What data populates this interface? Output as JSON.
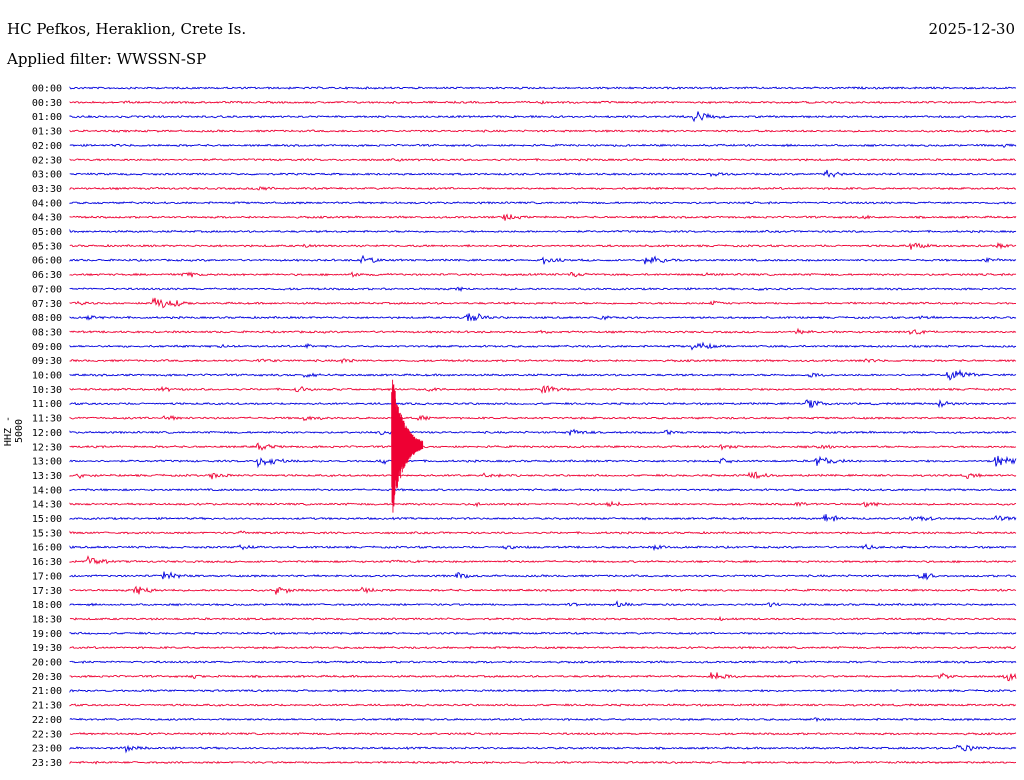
{
  "header": {
    "station": "HC Pefkos, Heraklion, Crete Is.",
    "date": "2025-12-30",
    "filter": "Applied filter: WWSSN-SP",
    "channel_label": "HHZ - 5000"
  },
  "colors": {
    "blue": "#0000dd",
    "red": "#ee0033"
  },
  "chart_data": {
    "type": "helicorder",
    "ylabel": "HHZ - 5000",
    "traces": [
      {
        "time": "00:00",
        "color": "blue",
        "events": []
      },
      {
        "time": "00:30",
        "color": "red",
        "events": [
          [
            0.06,
            0.25
          ],
          [
            0.5,
            0.25
          ],
          [
            0.98,
            0.2
          ]
        ]
      },
      {
        "time": "01:00",
        "color": "blue",
        "events": [
          [
            0.49,
            0.2
          ],
          [
            0.66,
            0.9
          ]
        ]
      },
      {
        "time": "01:30",
        "color": "red",
        "events": []
      },
      {
        "time": "02:00",
        "color": "blue",
        "events": [
          [
            0.05,
            0.25
          ],
          [
            0.99,
            0.35
          ]
        ]
      },
      {
        "time": "02:30",
        "color": "red",
        "events": [
          [
            0.35,
            0.2
          ]
        ]
      },
      {
        "time": "03:00",
        "color": "blue",
        "events": [
          [
            0.68,
            0.45
          ],
          [
            0.8,
            0.6
          ]
        ]
      },
      {
        "time": "03:30",
        "color": "red",
        "events": [
          [
            0.2,
            0.4
          ]
        ]
      },
      {
        "time": "04:00",
        "color": "blue",
        "events": []
      },
      {
        "time": "04:30",
        "color": "red",
        "events": [
          [
            0.46,
            0.55
          ],
          [
            0.84,
            0.3
          ]
        ]
      },
      {
        "time": "05:00",
        "color": "blue",
        "events": []
      },
      {
        "time": "05:30",
        "color": "red",
        "events": [
          [
            0.25,
            0.4
          ],
          [
            0.89,
            0.6
          ],
          [
            0.98,
            0.5
          ]
        ]
      },
      {
        "time": "06:00",
        "color": "blue",
        "events": [
          [
            0.31,
            0.65
          ],
          [
            0.5,
            0.6
          ],
          [
            0.61,
            0.8
          ],
          [
            0.97,
            0.4
          ]
        ]
      },
      {
        "time": "06:30",
        "color": "red",
        "events": [
          [
            0.12,
            0.55
          ],
          [
            0.3,
            0.35
          ],
          [
            0.53,
            0.45
          ],
          [
            0.67,
            0.3
          ]
        ]
      },
      {
        "time": "07:00",
        "color": "blue",
        "events": [
          [
            0.41,
            0.35
          ],
          [
            0.73,
            0.3
          ]
        ]
      },
      {
        "time": "07:30",
        "color": "red",
        "events": [
          [
            0.01,
            0.3
          ],
          [
            0.09,
            1.1
          ],
          [
            0.68,
            0.4
          ]
        ]
      },
      {
        "time": "08:00",
        "color": "blue",
        "events": [
          [
            0.02,
            0.45
          ],
          [
            0.42,
            0.9
          ],
          [
            0.56,
            0.4
          ],
          [
            0.9,
            0.5
          ]
        ]
      },
      {
        "time": "08:30",
        "color": "red",
        "events": [
          [
            0.5,
            0.3
          ],
          [
            0.77,
            0.45
          ],
          [
            0.89,
            0.5
          ]
        ]
      },
      {
        "time": "09:00",
        "color": "blue",
        "events": [
          [
            0.16,
            0.3
          ],
          [
            0.25,
            0.35
          ],
          [
            0.66,
            0.75
          ]
        ]
      },
      {
        "time": "09:30",
        "color": "red",
        "events": [
          [
            0.2,
            0.55
          ],
          [
            0.29,
            0.5
          ],
          [
            0.84,
            0.45
          ]
        ]
      },
      {
        "time": "10:00",
        "color": "blue",
        "events": [
          [
            0.25,
            0.5
          ],
          [
            0.78,
            0.55
          ],
          [
            0.93,
            1.0
          ]
        ]
      },
      {
        "time": "10:30",
        "color": "red",
        "events": [
          [
            0.1,
            0.4
          ],
          [
            0.24,
            0.5
          ],
          [
            0.38,
            0.4
          ],
          [
            0.5,
            0.7
          ]
        ]
      },
      {
        "time": "11:00",
        "color": "blue",
        "events": [
          [
            0.78,
            0.65
          ],
          [
            0.92,
            0.55
          ]
        ]
      },
      {
        "time": "11:30",
        "color": "red",
        "events": [
          [
            0.1,
            0.5
          ],
          [
            0.25,
            0.5
          ],
          [
            0.37,
            0.4
          ]
        ]
      },
      {
        "time": "12:00",
        "color": "blue",
        "events": [
          [
            0.33,
            0.5
          ],
          [
            0.53,
            0.6
          ],
          [
            0.63,
            0.45
          ]
        ]
      },
      {
        "time": "12:30",
        "color": "red",
        "events": [
          [
            0.2,
            0.55
          ],
          [
            0.69,
            0.45
          ],
          [
            0.79,
            0.6
          ]
        ]
      },
      {
        "time": "13:00",
        "color": "blue",
        "events": [
          [
            0.2,
            0.85
          ],
          [
            0.33,
            0.5
          ],
          [
            0.69,
            0.45
          ],
          [
            0.79,
            0.85
          ],
          [
            0.98,
            1.0
          ]
        ]
      },
      {
        "time": "13:30",
        "color": "red",
        "events": [
          [
            0.01,
            0.45
          ],
          [
            0.15,
            0.55
          ],
          [
            0.44,
            0.45
          ],
          [
            0.72,
            0.65
          ],
          [
            0.95,
            0.4
          ]
        ]
      },
      {
        "time": "14:00",
        "color": "blue",
        "events": [
          [
            0.52,
            0.25
          ]
        ]
      },
      {
        "time": "14:30",
        "color": "red",
        "events": [
          [
            0.43,
            0.35
          ],
          [
            0.57,
            0.45
          ],
          [
            0.77,
            0.45
          ],
          [
            0.84,
            0.55
          ]
        ]
      },
      {
        "time": "15:00",
        "color": "blue",
        "events": [
          [
            0.8,
            0.6
          ],
          [
            0.89,
            0.7
          ],
          [
            0.98,
            0.55
          ]
        ]
      },
      {
        "time": "15:30",
        "color": "red",
        "events": [
          [
            0.18,
            0.35
          ]
        ]
      },
      {
        "time": "16:00",
        "color": "blue",
        "events": [
          [
            0.18,
            0.5
          ],
          [
            0.46,
            0.4
          ],
          [
            0.62,
            0.45
          ],
          [
            0.84,
            0.4
          ]
        ]
      },
      {
        "time": "16:30",
        "color": "red",
        "events": [
          [
            0.02,
            0.7
          ],
          [
            0.34,
            0.35
          ]
        ]
      },
      {
        "time": "17:00",
        "color": "blue",
        "events": [
          [
            0.1,
            0.65
          ],
          [
            0.41,
            0.5
          ],
          [
            0.9,
            0.6
          ]
        ]
      },
      {
        "time": "17:30",
        "color": "red",
        "events": [
          [
            0.07,
            0.75
          ],
          [
            0.22,
            0.6
          ],
          [
            0.31,
            0.45
          ]
        ]
      },
      {
        "time": "18:00",
        "color": "blue",
        "events": [
          [
            0.53,
            0.35
          ],
          [
            0.58,
            0.4
          ],
          [
            0.74,
            0.4
          ]
        ]
      },
      {
        "time": "18:30",
        "color": "red",
        "events": [
          [
            0.69,
            0.3
          ]
        ]
      },
      {
        "time": "19:00",
        "color": "blue",
        "events": []
      },
      {
        "time": "19:30",
        "color": "red",
        "events": []
      },
      {
        "time": "20:00",
        "color": "blue",
        "events": []
      },
      {
        "time": "20:30",
        "color": "red",
        "events": [
          [
            0.13,
            0.35
          ],
          [
            0.68,
            0.75
          ],
          [
            0.92,
            0.5
          ],
          [
            0.99,
            0.75
          ]
        ]
      },
      {
        "time": "21:00",
        "color": "blue",
        "events": []
      },
      {
        "time": "21:30",
        "color": "red",
        "events": []
      },
      {
        "time": "22:00",
        "color": "blue",
        "events": [
          [
            0.79,
            0.3
          ]
        ]
      },
      {
        "time": "22:30",
        "color": "red",
        "events": []
      },
      {
        "time": "23:00",
        "color": "blue",
        "events": [
          [
            0.06,
            0.55
          ],
          [
            0.94,
            0.7
          ]
        ]
      },
      {
        "time": "23:30",
        "color": "red",
        "events": [
          [
            0.03,
            0.25
          ]
        ]
      }
    ],
    "big_event": {
      "start_time": "11:30",
      "end_time": "14:30",
      "position": 0.34
    }
  }
}
